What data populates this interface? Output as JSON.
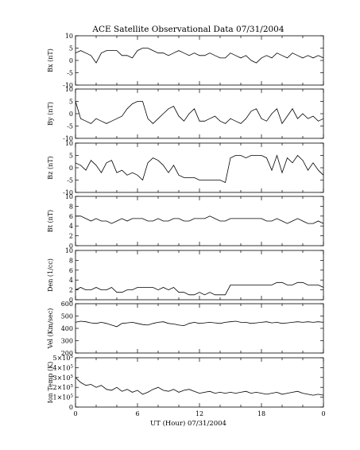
{
  "chart_data": {
    "type": "line",
    "title": "ACE Satellite Observational Data   07/31/2004",
    "xlabel": "UT (Hour)   07/31/2004",
    "x_ticks": [
      "0",
      "6",
      "12",
      "18",
      "0"
    ],
    "xlim": [
      0,
      24
    ],
    "panels": [
      {
        "ylabel": "Bx (nT)",
        "ylim": [
          -10,
          10
        ],
        "yticks": [
          "10",
          "5",
          "0",
          "-5",
          "-10"
        ],
        "series": [
          {
            "x": [
              0,
              0.5,
              1,
              1.5,
              2,
              2.5,
              3,
              3.5,
              4,
              4.5,
              5,
              5.5,
              6,
              6.5,
              7,
              7.5,
              8,
              8.5,
              9,
              9.5,
              10,
              10.5,
              11,
              11.5,
              12,
              12.5,
              13,
              13.5,
              14,
              14.5,
              15,
              15.5,
              16,
              16.5,
              17,
              17.5,
              18,
              18.5,
              19,
              19.5,
              20,
              20.5,
              21,
              21.5,
              22,
              22.5,
              23,
              23.5,
              24
            ],
            "values": [
              3,
              4,
              3,
              2,
              -1,
              3,
              4,
              4,
              4,
              2,
              2,
              1,
              4,
              5,
              5,
              4,
              3,
              3,
              2,
              3,
              4,
              3,
              2,
              3,
              2,
              2,
              3,
              2,
              1,
              1,
              3,
              2,
              1,
              2,
              0,
              -1,
              1,
              2,
              1,
              3,
              2,
              1,
              3,
              2,
              1,
              2,
              1,
              2,
              1
            ]
          }
        ]
      },
      {
        "ylabel": "By (nT)",
        "ylim": [
          -10,
          10
        ],
        "yticks": [
          "10",
          "5",
          "0",
          "-5",
          "-10"
        ],
        "series": [
          {
            "x": [
              0,
              0.5,
              1,
              1.5,
              2,
              2.5,
              3,
              3.5,
              4,
              4.5,
              5,
              5.5,
              6,
              6.5,
              7,
              7.5,
              8,
              8.5,
              9,
              9.5,
              10,
              10.5,
              11,
              11.5,
              12,
              12.5,
              13,
              13.5,
              14,
              14.5,
              15,
              15.5,
              16,
              16.5,
              17,
              17.5,
              18,
              18.5,
              19,
              19.5,
              20,
              20.5,
              21,
              21.5,
              22,
              22.5,
              23,
              23.5,
              24
            ],
            "values": [
              5,
              -2,
              -3,
              -4,
              -2,
              -3,
              -4,
              -3,
              -2,
              -1,
              2,
              4,
              5,
              5,
              -2,
              -4,
              -2,
              0,
              2,
              3,
              -1,
              -3,
              0,
              2,
              -3,
              -3,
              -2,
              -1,
              -3,
              -4,
              -2,
              -3,
              -4,
              -2,
              1,
              2,
              -2,
              -3,
              0,
              2,
              -4,
              -1,
              2,
              -2,
              0,
              -2,
              -1,
              -3,
              -2
            ]
          }
        ]
      },
      {
        "ylabel": "Bz (nT)",
        "ylim": [
          -10,
          10
        ],
        "yticks": [
          "10",
          "5",
          "0",
          "-5",
          "-10"
        ],
        "series": [
          {
            "x": [
              0,
              0.5,
              1,
              1.5,
              2,
              2.5,
              3,
              3.5,
              4,
              4.5,
              5,
              5.5,
              6,
              6.5,
              7,
              7.5,
              8,
              8.5,
              9,
              9.5,
              10,
              10.5,
              11,
              11.5,
              12,
              12.5,
              13,
              13.5,
              14,
              14.5,
              15,
              15.5,
              16,
              16.5,
              17,
              17.5,
              18,
              18.5,
              19,
              19.5,
              20,
              20.5,
              21,
              21.5,
              22,
              22.5,
              23,
              23.5,
              24
            ],
            "values": [
              2,
              1,
              -1,
              3,
              1,
              -2,
              2,
              3,
              -2,
              -1,
              -3,
              -2,
              -3,
              -5,
              2,
              4,
              3,
              1,
              -2,
              1,
              -3,
              -4,
              -4,
              -4,
              -5,
              -5,
              -5,
              -5,
              -5,
              -6,
              4,
              5,
              5,
              4,
              5,
              5,
              5,
              4,
              -1,
              5,
              -2,
              4,
              2,
              5,
              3,
              -1,
              2,
              -1,
              -3
            ]
          }
        ]
      },
      {
        "ylabel": "Bt (nT)",
        "ylim": [
          0,
          10
        ],
        "yticks": [
          "10",
          "8",
          "6",
          "4",
          "2",
          "0"
        ],
        "series": [
          {
            "x": [
              0,
              0.5,
              1,
              1.5,
              2,
              2.5,
              3,
              3.5,
              4,
              4.5,
              5,
              5.5,
              6,
              6.5,
              7,
              7.5,
              8,
              8.5,
              9,
              9.5,
              10,
              10.5,
              11,
              11.5,
              12,
              12.5,
              13,
              13.5,
              14,
              14.5,
              15,
              15.5,
              16,
              16.5,
              17,
              17.5,
              18,
              18.5,
              19,
              19.5,
              20,
              20.5,
              21,
              21.5,
              22,
              22.5,
              23,
              23.5,
              24
            ],
            "values": [
              6,
              6,
              5.5,
              5,
              5.5,
              5,
              5,
              4.5,
              5,
              5.5,
              5,
              5.5,
              5.5,
              5.5,
              5,
              5,
              5.5,
              5,
              5,
              5.5,
              5.5,
              5,
              5,
              5.5,
              5.5,
              5.5,
              6,
              5.5,
              5,
              5,
              5.5,
              5.5,
              5.5,
              5.5,
              5.5,
              5.5,
              5.5,
              5,
              5,
              5.5,
              5,
              4.5,
              5,
              5.5,
              5,
              4.5,
              4.5,
              5,
              4.5
            ]
          }
        ]
      },
      {
        "ylabel": "Den (1/cc)",
        "ylim": [
          0,
          10
        ],
        "yticks": [
          "10",
          "8",
          "6",
          "4",
          "2",
          "0"
        ],
        "series": [
          {
            "x": [
              0,
              0.5,
              1,
              1.5,
              2,
              2.5,
              3,
              3.5,
              4,
              4.5,
              5,
              5.5,
              6,
              6.5,
              7,
              7.5,
              8,
              8.5,
              9,
              9.5,
              10,
              10.5,
              11,
              11.5,
              12,
              12.5,
              13,
              13.5,
              14,
              14.5,
              15,
              15.5,
              16,
              16.5,
              17,
              17.5,
              18,
              18.5,
              19,
              19.5,
              20,
              20.5,
              21,
              21.5,
              22,
              22.5,
              23,
              23.5,
              24
            ],
            "values": [
              2,
              2.5,
              2,
              2,
              2.5,
              2,
              2,
              2.5,
              1.5,
              1.5,
              2,
              2,
              2.5,
              2.5,
              2.5,
              2.5,
              2,
              2.5,
              2,
              2.5,
              1.5,
              1.5,
              1,
              1,
              1.5,
              1,
              1.5,
              1,
              1,
              1,
              3,
              3,
              3,
              3,
              3,
              3,
              3,
              3,
              3,
              3.5,
              3.5,
              3,
              3,
              3.5,
              3.5,
              3,
              3,
              3,
              2.5
            ]
          }
        ]
      },
      {
        "ylabel": "Vel (Km/sec)",
        "ylim": [
          200,
          650
        ],
        "yticks": [
          "600",
          "500",
          "400",
          "300",
          "200"
        ],
        "series": [
          {
            "x": [
              0,
              0.5,
              1,
              1.5,
              2,
              2.5,
              3,
              3.5,
              4,
              4.5,
              5,
              5.5,
              6,
              6.5,
              7,
              7.5,
              8,
              8.5,
              9,
              9.5,
              10,
              10.5,
              11,
              11.5,
              12,
              12.5,
              13,
              13.5,
              14,
              14.5,
              15,
              15.5,
              16,
              16.5,
              17,
              17.5,
              18,
              18.5,
              19,
              19.5,
              20,
              20.5,
              21,
              21.5,
              22,
              22.5,
              23,
              23.5,
              24
            ],
            "values": [
              480,
              490,
              485,
              475,
              470,
              480,
              470,
              455,
              440,
              470,
              475,
              480,
              470,
              460,
              455,
              470,
              480,
              485,
              470,
              465,
              455,
              450,
              470,
              480,
              470,
              475,
              480,
              475,
              470,
              480,
              485,
              490,
              480,
              480,
              470,
              475,
              480,
              485,
              475,
              480,
              470,
              475,
              480,
              485,
              480,
              485,
              480,
              485,
              480
            ]
          }
        ]
      },
      {
        "ylabel": "Ion Temp (K)",
        "ylim": [
          0,
          500000
        ],
        "yticks": [
          "5×10",
          "4×10",
          "3×10",
          "2×10",
          "1×10",
          "0"
        ],
        "ytick_exponent": "5",
        "series": [
          {
            "x": [
              0,
              0.5,
              1,
              1.5,
              2,
              2.5,
              3,
              3.5,
              4,
              4.5,
              5,
              5.5,
              6,
              6.5,
              7,
              7.5,
              8,
              8.5,
              9,
              9.5,
              10,
              10.5,
              11,
              11.5,
              12,
              12.5,
              13,
              13.5,
              14,
              14.5,
              15,
              15.5,
              16,
              16.5,
              17,
              17.5,
              18,
              18.5,
              19,
              19.5,
              20,
              20.5,
              21,
              21.5,
              22,
              22.5,
              23,
              23.5,
              24
            ],
            "values": [
              300000,
              250000,
              220000,
              230000,
              200000,
              220000,
              180000,
              170000,
              200000,
              160000,
              180000,
              150000,
              170000,
              130000,
              150000,
              180000,
              200000,
              170000,
              160000,
              180000,
              150000,
              170000,
              180000,
              160000,
              140000,
              150000,
              160000,
              140000,
              150000,
              140000,
              150000,
              140000,
              150000,
              160000,
              140000,
              150000,
              140000,
              130000,
              140000,
              150000,
              130000,
              140000,
              150000,
              160000,
              140000,
              130000,
              120000,
              130000,
              120000
            ]
          }
        ]
      }
    ]
  }
}
